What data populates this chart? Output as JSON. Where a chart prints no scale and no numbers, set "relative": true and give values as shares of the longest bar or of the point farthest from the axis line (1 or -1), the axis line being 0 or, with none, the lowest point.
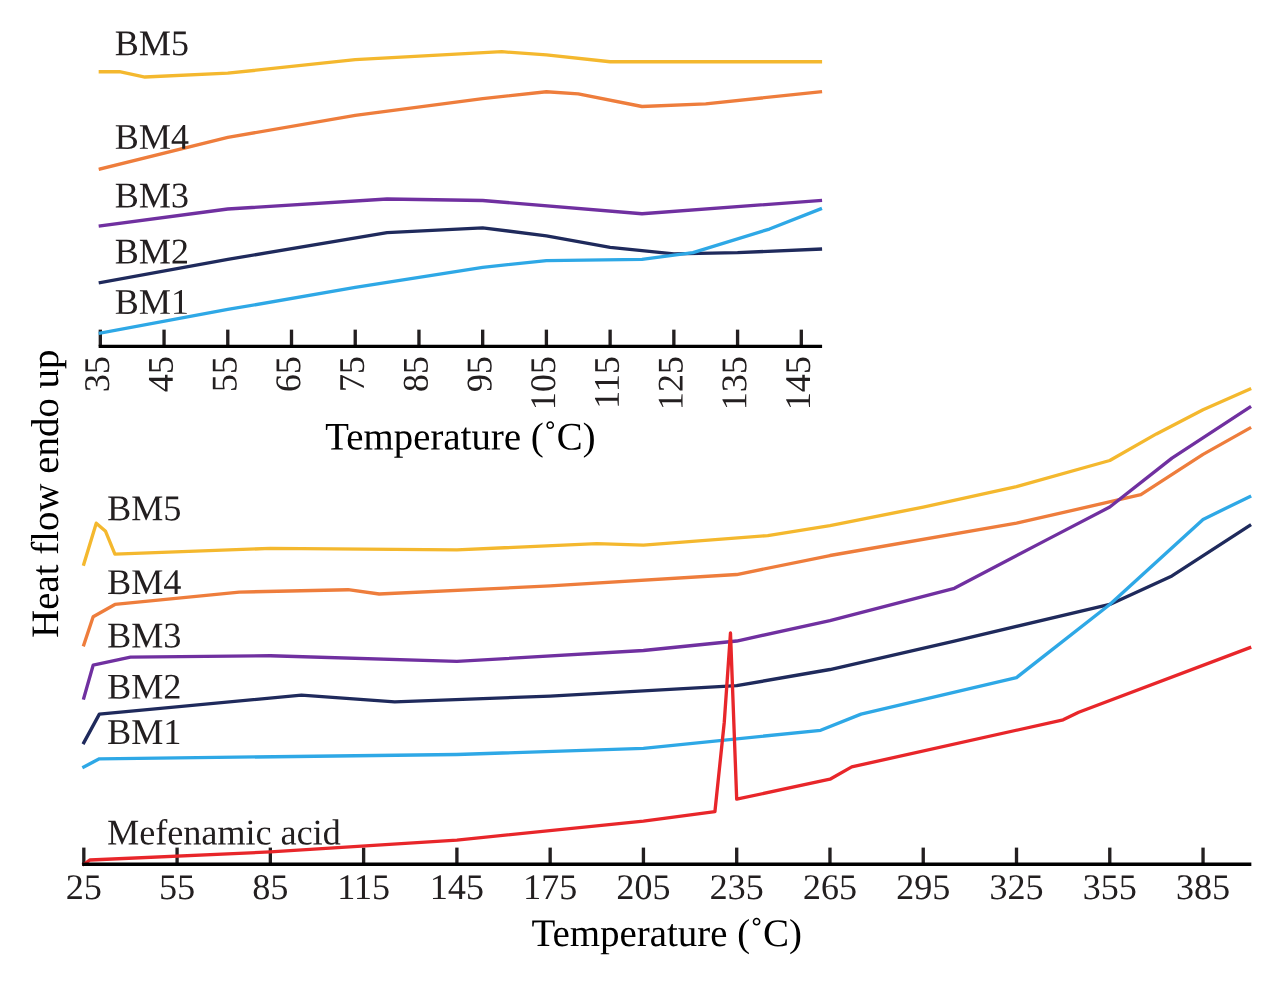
{
  "chart_data": [
    {
      "type": "line",
      "relative": true,
      "xlabel": "Temperature (˚C)",
      "xlim": [
        35,
        148
      ],
      "xticks": [
        35,
        45,
        55,
        65,
        75,
        85,
        95,
        105,
        115,
        125,
        135,
        145
      ],
      "tick_labels": "x",
      "grid": false,
      "legend": false,
      "series": [
        {
          "name": "BM5",
          "color": "#f4b82e",
          "x": [
            35,
            38,
            42,
            55,
            75,
            98,
            105,
            115,
            148
          ],
          "values": [
            0.932,
            0.932,
            0.914,
            0.927,
            0.973,
            1.0,
            0.989,
            0.966,
            0.966
          ]
        },
        {
          "name": "BM4",
          "color": "#ee7d3c",
          "x": [
            35,
            55,
            75,
            95,
            105,
            110,
            120,
            130,
            148
          ],
          "values": [
            0.602,
            0.709,
            0.784,
            0.841,
            0.864,
            0.857,
            0.814,
            0.823,
            0.864
          ]
        },
        {
          "name": "BM3",
          "color": "#7030a0",
          "x": [
            35,
            55,
            80,
            95,
            120,
            148
          ],
          "values": [
            0.409,
            0.466,
            0.5,
            0.495,
            0.45,
            0.495
          ]
        },
        {
          "name": "BM2",
          "color": "#1f2a5c",
          "x": [
            35,
            55,
            80,
            95,
            105,
            115,
            125,
            135,
            148
          ],
          "values": [
            0.216,
            0.295,
            0.386,
            0.402,
            0.375,
            0.336,
            0.314,
            0.318,
            0.33
          ]
        },
        {
          "name": "BM1",
          "color": "#2ea8e6",
          "x": [
            35,
            55,
            75,
            95,
            105,
            120,
            128,
            140,
            148
          ],
          "values": [
            0.045,
            0.125,
            0.2,
            0.268,
            0.291,
            0.295,
            0.318,
            0.398,
            0.466
          ]
        }
      ]
    },
    {
      "type": "line",
      "relative": true,
      "xlabel": "Temperature (˚C)",
      "ylabel": "Heat flow endo up",
      "xlim": [
        25,
        400
      ],
      "xticks": [
        25,
        55,
        85,
        115,
        145,
        175,
        205,
        235,
        265,
        295,
        325,
        355,
        385
      ],
      "tick_labels": "x",
      "grid": false,
      "legend": false,
      "series": [
        {
          "name": "BM5",
          "color": "#f4b82e",
          "x": [
            25,
            29,
            32,
            35,
            85,
            145,
            190,
            205,
            245,
            265,
            295,
            325,
            355,
            370,
            385,
            400
          ],
          "values": [
            0.632,
            0.718,
            0.701,
            0.653,
            0.665,
            0.662,
            0.675,
            0.672,
            0.692,
            0.713,
            0.752,
            0.795,
            0.85,
            0.906,
            0.957,
            1.0
          ]
        },
        {
          "name": "BM4",
          "color": "#ee7d3c",
          "x": [
            25,
            28,
            35,
            75,
            110,
            120,
            175,
            235,
            265,
            325,
            365,
            385,
            400
          ],
          "values": [
            0.462,
            0.521,
            0.547,
            0.573,
            0.578,
            0.569,
            0.586,
            0.61,
            0.65,
            0.718,
            0.778,
            0.863,
            0.918
          ]
        },
        {
          "name": "BM3",
          "color": "#7030a0",
          "x": [
            25,
            28,
            40,
            85,
            145,
            205,
            235,
            265,
            305,
            335,
            355,
            375,
            400
          ],
          "values": [
            0.35,
            0.419,
            0.436,
            0.439,
            0.427,
            0.45,
            0.47,
            0.513,
            0.581,
            0.684,
            0.752,
            0.855,
            0.962
          ]
        },
        {
          "name": "BM2",
          "color": "#1f2a5c",
          "x": [
            25,
            30,
            95,
            125,
            175,
            235,
            265,
            305,
            355,
            375,
            400
          ],
          "values": [
            0.256,
            0.316,
            0.356,
            0.342,
            0.354,
            0.376,
            0.41,
            0.47,
            0.547,
            0.607,
            0.713
          ]
        },
        {
          "name": "BM1",
          "color": "#2ea8e6",
          "x": [
            25,
            30,
            145,
            205,
            262,
            275,
            325,
            355,
            385,
            400
          ],
          "values": [
            0.205,
            0.222,
            0.231,
            0.244,
            0.282,
            0.316,
            0.393,
            0.547,
            0.726,
            0.774
          ]
        },
        {
          "name": "Mefenamic acid",
          "color": "#e8262a",
          "x": [
            25,
            27,
            85,
            145,
            205,
            228,
            231,
            233,
            235,
            265,
            272,
            340,
            345,
            400
          ],
          "values": [
            0,
            0.009,
            0.026,
            0.051,
            0.091,
            0.111,
            0.299,
            0.487,
            0.137,
            0.179,
            0.205,
            0.304,
            0.32,
            0.456
          ]
        }
      ]
    }
  ]
}
